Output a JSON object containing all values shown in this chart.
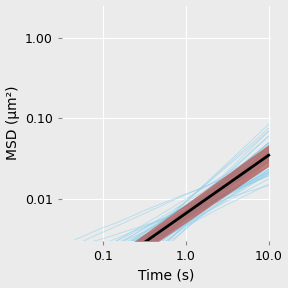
{
  "xlabel": "Time (s)",
  "ylabel": "MSD (μm²)",
  "x_ticks": [
    0.1,
    1.0,
    10.0
  ],
  "x_tick_labels": [
    "0.1",
    "1.0",
    "10.0"
  ],
  "y_ticks": [
    0.01,
    0.1,
    1.0
  ],
  "y_tick_labels": [
    "0.01",
    "0.10",
    "1.00"
  ],
  "n_trajectories": 76,
  "mean_log_intercept": -2.18,
  "mean_slope": 0.72,
  "spread_slope_std": 0.15,
  "spread_log_intercept_std": 0.1,
  "ci_band_upper": 0.09,
  "ci_band_lower": 0.09,
  "traj_color": "#87ceeb",
  "traj_alpha": 0.5,
  "traj_lw": 0.65,
  "mean_color": "#000000",
  "mean_lw": 2.0,
  "ci_color": "#c0392b",
  "ci_alpha": 0.6,
  "bg_color": "#ebebeb",
  "grid_color": "#ffffff",
  "x_start_log": -1.35,
  "x_end_log": 1.0,
  "xlim_min_log": -1.5,
  "xlim_max_log": 1.03,
  "ylim_min": 0.003,
  "ylim_max": 2.5,
  "n_points": 300,
  "seed": 42
}
